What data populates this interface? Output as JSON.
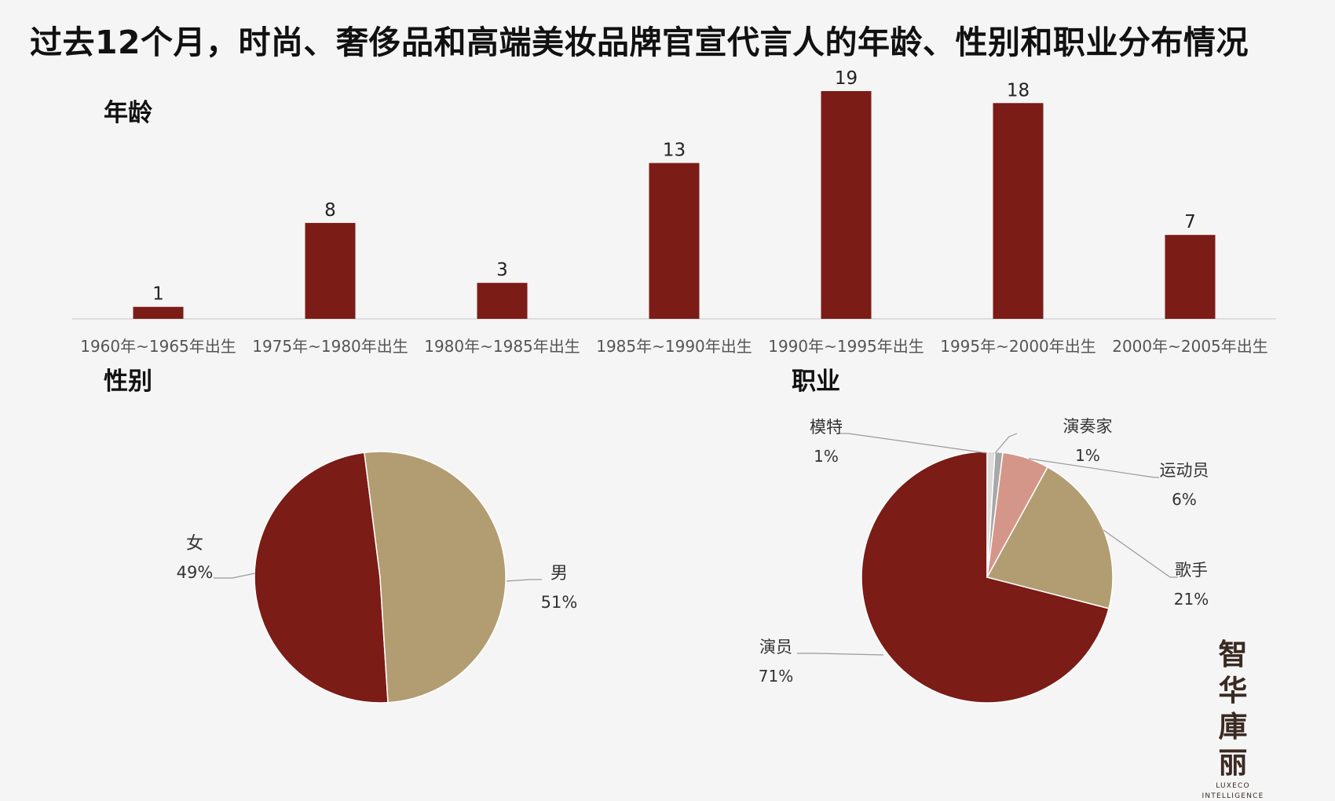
{
  "title": "过去12个月，时尚、奢侈品和高端美妆品牌官宣代言人的年龄、性别和职业分布情况",
  "sections": {
    "age": "年龄",
    "gender": "性别",
    "occupation": "职业"
  },
  "colors": {
    "dark_red": "#7b1c17",
    "tan": "#b29c71",
    "pink": "#d5968a",
    "gray": "#a8a8a8",
    "light": "#dcdcdc",
    "background": "#f5f5f5"
  },
  "logo": {
    "line1": "智华",
    "line2": "庫丽",
    "en1": "LUXECO",
    "en2": "INTELLIGENCE"
  },
  "chart_data": [
    {
      "type": "bar",
      "title": "年龄",
      "categories": [
        "1960年~1965年出生",
        "1975年~1980年出生",
        "1980年~1985年出生",
        "1985年~1990年出生",
        "1990年~1995年出生",
        "1995年~2000年出生",
        "2000年~2005年出生"
      ],
      "values": [
        1,
        8,
        3,
        13,
        19,
        18,
        7
      ],
      "data_labels": [
        "1",
        "8",
        "3",
        "13",
        "19",
        "18",
        "7"
      ],
      "ylim": [
        0,
        19
      ],
      "grid": false,
      "color": "#7b1c17"
    },
    {
      "type": "pie",
      "title": "性别",
      "slices": [
        {
          "label": "女",
          "value": 49,
          "value_text": "49%",
          "color": "#7b1c17"
        },
        {
          "label": "男",
          "value": 51,
          "value_text": "51%",
          "color": "#b29c71"
        }
      ]
    },
    {
      "type": "pie",
      "title": "职业",
      "slices": [
        {
          "label": "演员",
          "value": 71,
          "value_text": "71%",
          "color": "#7b1c17"
        },
        {
          "label": "模特",
          "value": 1,
          "value_text": "1%",
          "color": "#dcdcdc"
        },
        {
          "label": "演奏家",
          "value": 1,
          "value_text": "1%",
          "color": "#a8a8a8"
        },
        {
          "label": "运动员",
          "value": 6,
          "value_text": "6%",
          "color": "#d5968a"
        },
        {
          "label": "歌手",
          "value": 21,
          "value_text": "21%",
          "color": "#b29c71"
        }
      ]
    }
  ]
}
